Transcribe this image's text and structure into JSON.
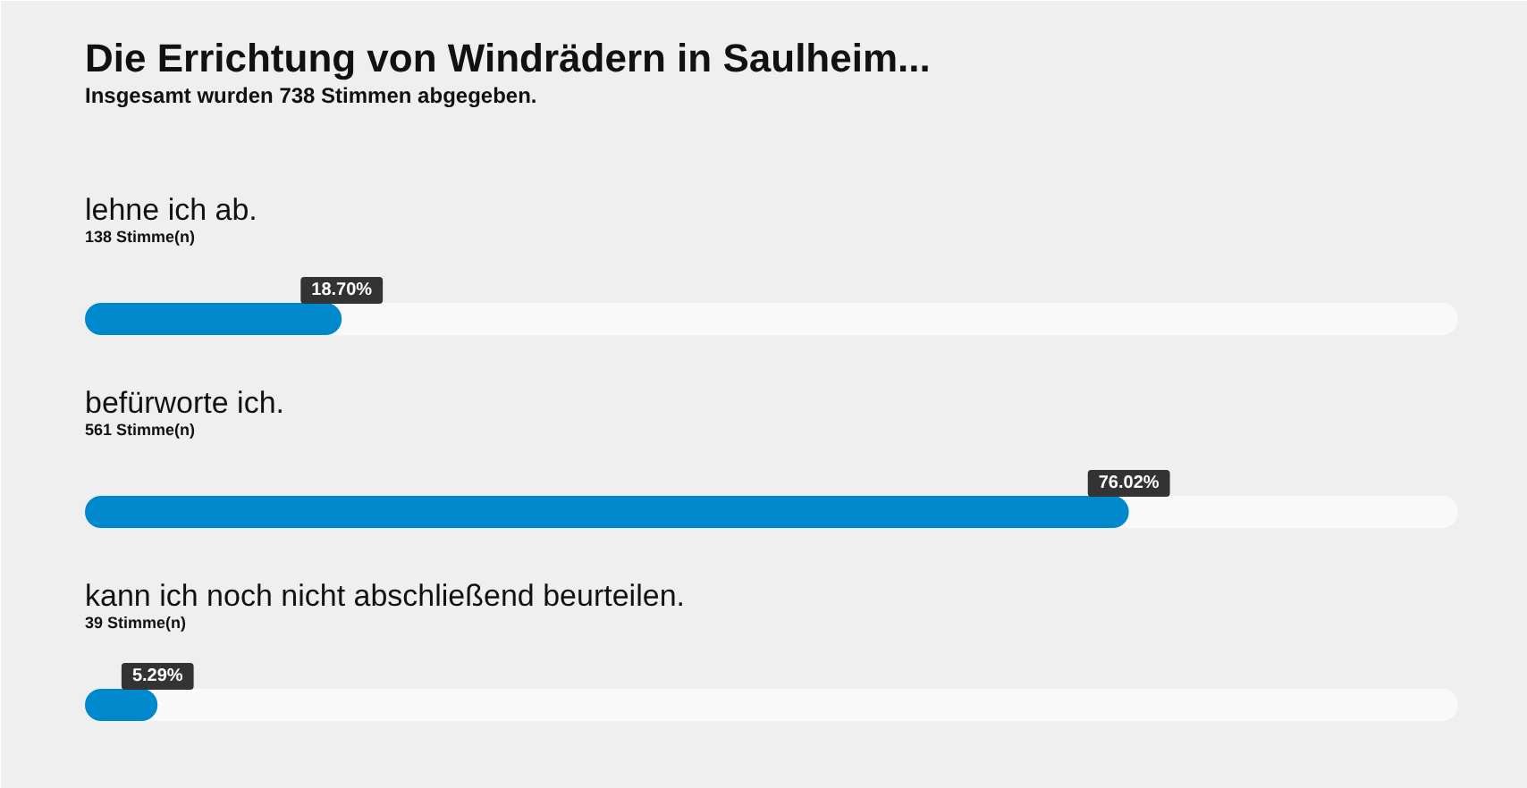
{
  "chart_data": {
    "type": "bar",
    "orientation": "horizontal",
    "title": "Die Errichtung von Windrädern in Saulheim...",
    "subtitle": "Insgesamt wurden 738 Stimmen abgegeben.",
    "categories": [
      "lehne ich ab.",
      "befürworte ich.",
      "kann ich noch nicht abschließend beurteilen."
    ],
    "values": [
      18.7,
      76.02,
      5.29
    ],
    "value_labels": [
      "18.70%",
      "76.02%",
      "5.29%"
    ],
    "color": "#0088cc",
    "xlim": [
      0,
      100
    ],
    "tick_labels": false,
    "annotations": [
      "138 Stimme(n)",
      "561 Stimme(n)",
      "39 Stimme(n)"
    ]
  }
}
